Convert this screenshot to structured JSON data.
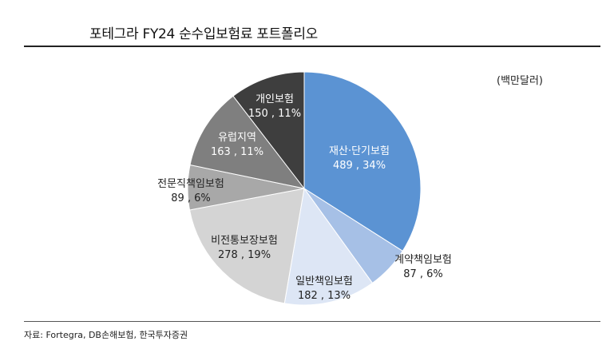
{
  "header": {
    "title": "포테그라 FY24 순수입보험료 포트폴리오"
  },
  "unit_label": "(백만달러)",
  "source": "자료: Fortegra, DB손해보험, 한국투자증권",
  "colors": {
    "property_casualty": "#5b93d3",
    "contract": "#a6c0e6",
    "general": "#dde6f5",
    "non_life_savings": "#d4d4d4",
    "professional": "#a8a8a8",
    "europe": "#7f7f7f",
    "personal": "#3e3e3e"
  },
  "chart_data": {
    "type": "pie",
    "title": "포테그라 FY24 순수입보험료 포트폴리오",
    "unit": "(백만달러)",
    "slices": [
      {
        "name": "재산·단기보험",
        "value": 489,
        "pct": 34,
        "label": "489 , 34%",
        "color": "#5b93d3"
      },
      {
        "name": "계약책임보험",
        "value": 87,
        "pct": 6,
        "label": "87 , 6%",
        "color": "#a6c0e6"
      },
      {
        "name": "일반책임보험",
        "value": 182,
        "pct": 13,
        "label": "182 , 13%",
        "color": "#dde6f5"
      },
      {
        "name": "비전통보장보험",
        "value": 278,
        "pct": 19,
        "label": "278 , 19%",
        "color": "#d4d4d4"
      },
      {
        "name": "전문직책임보험",
        "value": 89,
        "pct": 6,
        "label": "89 , 6%",
        "color": "#a8a8a8"
      },
      {
        "name": "유럽지역",
        "value": 163,
        "pct": 11,
        "label": "163 , 11%",
        "color": "#7f7f7f"
      },
      {
        "name": "개인보험",
        "value": 150,
        "pct": 11,
        "label": "150 , 11%",
        "color": "#3e3e3e"
      }
    ]
  }
}
